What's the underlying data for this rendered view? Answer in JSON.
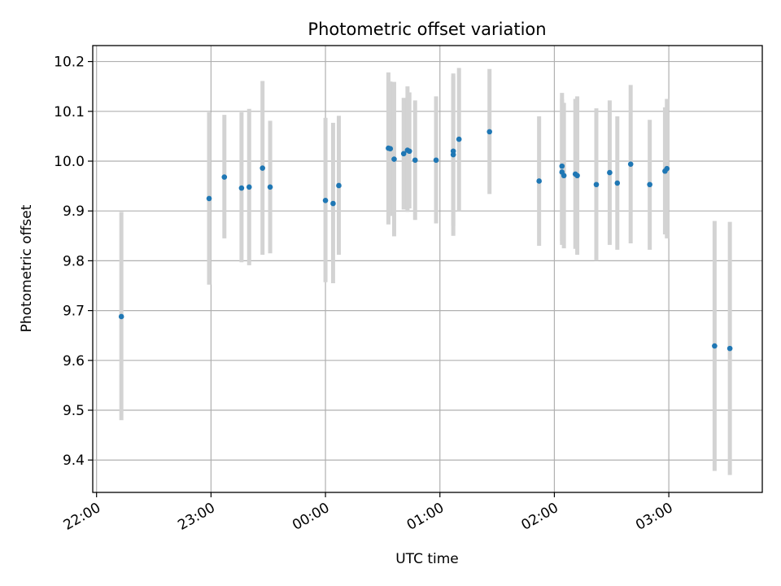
{
  "chart_data": {
    "type": "scatter",
    "title": "Photometric offset variation",
    "xlabel": "UTC time",
    "ylabel": "Photometric offset",
    "x_unit": "UTC time of night (22:00 to 03:00)",
    "xlim": [
      "21:58",
      "03:49"
    ],
    "ylim": [
      9.335,
      10.232
    ],
    "x_ticks": [
      "22:00",
      "23:00",
      "00:00",
      "01:00",
      "02:00",
      "03:00"
    ],
    "y_ticks": [
      "9.4",
      "9.5",
      "9.6",
      "9.7",
      "9.8",
      "9.9",
      "10.0",
      "10.1",
      "10.2"
    ],
    "grid": true,
    "colors": {
      "points": "#1f77b4",
      "errorbars": "#d3d3d3",
      "grid": "#b0b0b0"
    },
    "series": [
      {
        "points": [
          {
            "x": "22:13",
            "y": 9.688,
            "low": 9.48,
            "high": 9.898
          },
          {
            "x": "22:59",
            "y": 9.925,
            "low": 9.752,
            "high": 10.098
          },
          {
            "x": "23:07",
            "y": 9.968,
            "low": 9.845,
            "high": 10.093
          },
          {
            "x": "23:16",
            "y": 9.946,
            "low": 9.797,
            "high": 10.098
          },
          {
            "x": "23:20",
            "y": 9.948,
            "low": 9.791,
            "high": 10.105
          },
          {
            "x": "23:27",
            "y": 9.986,
            "low": 9.812,
            "high": 10.161
          },
          {
            "x": "23:31",
            "y": 9.948,
            "low": 9.815,
            "high": 10.081
          },
          {
            "x": "00:00",
            "y": 9.921,
            "low": 9.757,
            "high": 10.087
          },
          {
            "x": "00:04",
            "y": 9.915,
            "low": 9.755,
            "high": 10.077
          },
          {
            "x": "00:07",
            "y": 9.951,
            "low": 9.812,
            "high": 10.091
          },
          {
            "x": "00:33",
            "y": 10.026,
            "low": 9.873,
            "high": 10.178
          },
          {
            "x": "00:34",
            "y": 10.025,
            "low": 9.89,
            "high": 10.16
          },
          {
            "x": "00:36",
            "y": 10.004,
            "low": 9.849,
            "high": 10.159
          },
          {
            "x": "00:41",
            "y": 10.015,
            "low": 9.903,
            "high": 10.127
          },
          {
            "x": "00:43",
            "y": 10.022,
            "low": 9.898,
            "high": 10.15
          },
          {
            "x": "00:44",
            "y": 10.02,
            "low": 9.905,
            "high": 10.138
          },
          {
            "x": "00:47",
            "y": 10.002,
            "low": 9.882,
            "high": 10.122
          },
          {
            "x": "00:58",
            "y": 10.002,
            "low": 9.875,
            "high": 10.13
          },
          {
            "x": "01:07",
            "y": 10.013,
            "low": 9.85,
            "high": 10.176
          },
          {
            "x": "01:07",
            "y": 10.02,
            "low": 9.87,
            "high": 10.17
          },
          {
            "x": "01:10",
            "y": 10.044,
            "low": 9.9,
            "high": 10.187
          },
          {
            "x": "01:26",
            "y": 10.059,
            "low": 9.934,
            "high": 10.185
          },
          {
            "x": "01:52",
            "y": 9.96,
            "low": 9.83,
            "high": 10.09
          },
          {
            "x": "02:04",
            "y": 9.978,
            "low": 9.832,
            "high": 10.125
          },
          {
            "x": "02:04",
            "y": 9.99,
            "low": 9.84,
            "high": 10.137
          },
          {
            "x": "02:05",
            "y": 9.971,
            "low": 9.825,
            "high": 10.117
          },
          {
            "x": "02:11",
            "y": 9.974,
            "low": 9.824,
            "high": 10.125
          },
          {
            "x": "02:12",
            "y": 9.971,
            "low": 9.812,
            "high": 10.13
          },
          {
            "x": "02:22",
            "y": 9.953,
            "low": 9.8,
            "high": 10.106
          },
          {
            "x": "02:29",
            "y": 9.977,
            "low": 9.832,
            "high": 10.122
          },
          {
            "x": "02:33",
            "y": 9.956,
            "low": 9.822,
            "high": 10.09
          },
          {
            "x": "02:40",
            "y": 9.994,
            "low": 9.835,
            "high": 10.153
          },
          {
            "x": "02:50",
            "y": 9.953,
            "low": 9.822,
            "high": 10.083
          },
          {
            "x": "02:58",
            "y": 9.98,
            "low": 9.853,
            "high": 10.108
          },
          {
            "x": "02:59",
            "y": 9.985,
            "low": 9.845,
            "high": 10.125
          },
          {
            "x": "03:24",
            "y": 9.629,
            "low": 9.378,
            "high": 9.88
          },
          {
            "x": "03:32",
            "y": 9.624,
            "low": 9.37,
            "high": 9.878
          }
        ]
      }
    ]
  }
}
